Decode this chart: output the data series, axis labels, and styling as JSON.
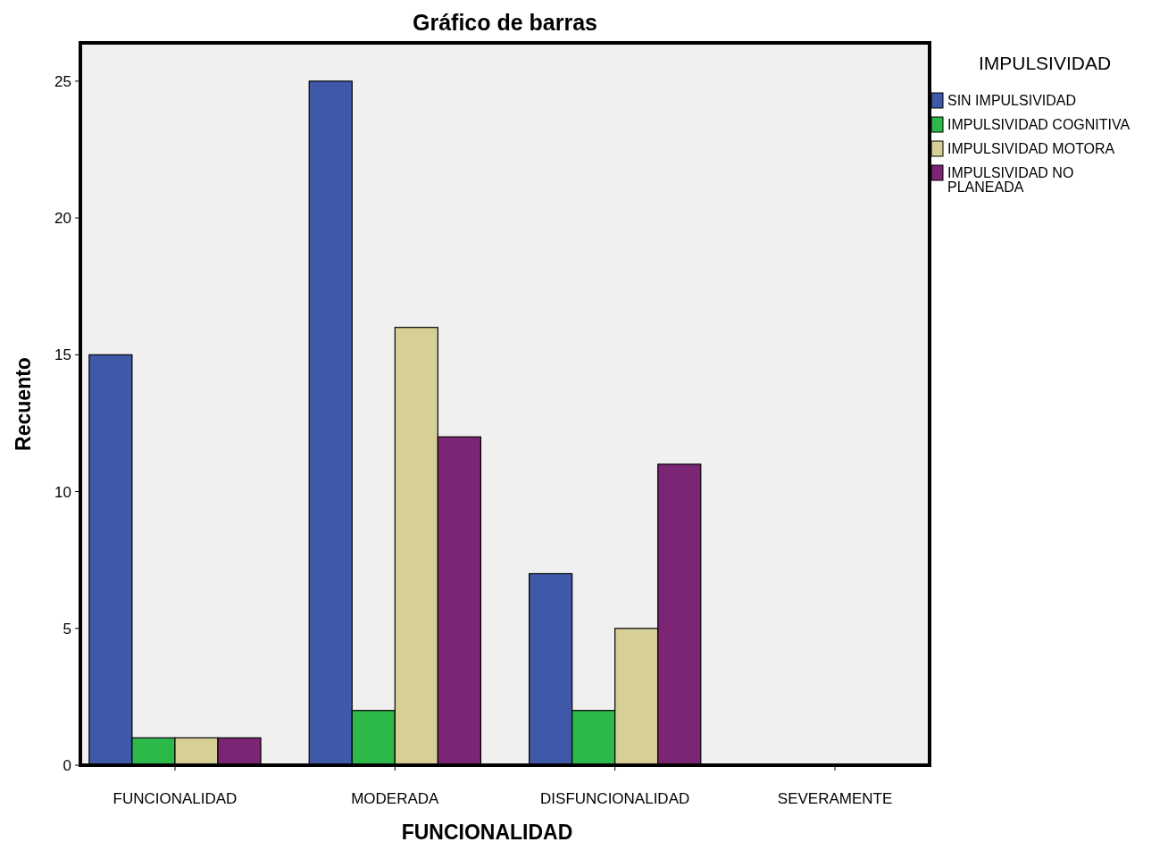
{
  "chart_data": {
    "type": "bar",
    "title": "Gráfico de barras",
    "xlabel": "FUNCIONALIDAD",
    "ylabel": "Recuento",
    "legend_title": "IMPULSIVIDAD",
    "categories": [
      "FUNCIONALIDAD",
      "MODERADA",
      "DISFUNCIONALIDAD",
      "SEVERAMENTE"
    ],
    "series": [
      {
        "name": "SIN IMPULSIVIDAD",
        "color": "#3f58a8",
        "values": [
          15,
          25,
          7,
          0
        ]
      },
      {
        "name": "IMPULSIVIDAD COGNITIVA",
        "color": "#2db84a",
        "values": [
          1,
          2,
          2,
          0
        ]
      },
      {
        "name": "IMPULSIVIDAD MOTORA",
        "color": "#d6d097",
        "values": [
          1,
          16,
          5,
          0
        ]
      },
      {
        "name": "IMPULSIVIDAD NO PLANEADA",
        "color": "#7b2574",
        "values": [
          1,
          12,
          11,
          0
        ]
      }
    ],
    "ylim": [
      0,
      26.4
    ],
    "yticks": [
      0,
      5,
      10,
      15,
      20,
      25
    ],
    "grid": false,
    "legend": "top right"
  }
}
